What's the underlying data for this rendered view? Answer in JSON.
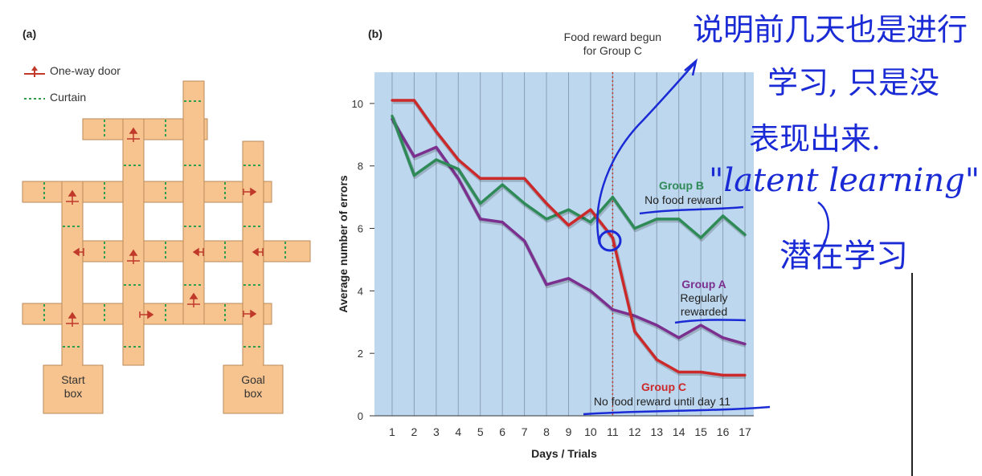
{
  "panel_a": {
    "label": "(a)",
    "legend": [
      {
        "label": "One-way door",
        "icon": "one-way-door-icon",
        "color": "#c0392b"
      },
      {
        "label": "Curtain",
        "icon": "curtain-icon",
        "color": "#2e9e4f"
      }
    ],
    "start_box": [
      "Start",
      "box"
    ],
    "goal_box": [
      "Goal",
      "box"
    ],
    "maze_color": "#f7c48f"
  },
  "panel_b": {
    "label": "(b)"
  },
  "chart_data": {
    "type": "line",
    "xlabel": "Days / Trials",
    "ylabel": "Average number of errors",
    "x": [
      1,
      2,
      3,
      4,
      5,
      6,
      7,
      8,
      9,
      10,
      11,
      12,
      13,
      14,
      15,
      16,
      17
    ],
    "xlim": [
      0.2,
      17.4
    ],
    "ylim": [
      0,
      11
    ],
    "yticks": [
      0,
      2,
      4,
      6,
      8,
      10
    ],
    "grid": "vertical",
    "background": "#bdd7ee",
    "marker_line": {
      "x": 11,
      "label": [
        "Food reward begun",
        "for Group C"
      ],
      "color": "#c0392b"
    },
    "series": [
      {
        "name": "Group A",
        "color": "#7b2f8e",
        "note": [
          "Regularly",
          "rewarded"
        ],
        "values": [
          9.5,
          8.3,
          8.6,
          7.6,
          6.3,
          6.2,
          5.6,
          4.2,
          4.4,
          4.0,
          3.4,
          3.2,
          2.9,
          2.5,
          2.9,
          2.5,
          2.3
        ]
      },
      {
        "name": "Group B",
        "color": "#2e8b57",
        "note": [
          "No food reward"
        ],
        "values": [
          9.6,
          7.7,
          8.2,
          7.9,
          6.8,
          7.4,
          6.8,
          6.3,
          6.6,
          6.2,
          7.0,
          6.0,
          6.3,
          6.3,
          5.7,
          6.4,
          5.8
        ]
      },
      {
        "name": "Group C",
        "color": "#cc2a2a",
        "note": [
          "No food reward until day 11"
        ],
        "values": [
          10.1,
          10.1,
          9.1,
          8.2,
          7.6,
          7.6,
          7.6,
          6.8,
          6.1,
          6.6,
          5.7,
          2.7,
          1.8,
          1.4,
          1.4,
          1.3,
          1.3
        ]
      }
    ]
  },
  "annotations": {
    "handwritten_lines": [
      "说明前几天也是进行",
      "学习, 只是没",
      "表现出来.",
      "\"latent learning\"",
      "潜在学习"
    ],
    "ink_color": "#1a2bd6"
  }
}
